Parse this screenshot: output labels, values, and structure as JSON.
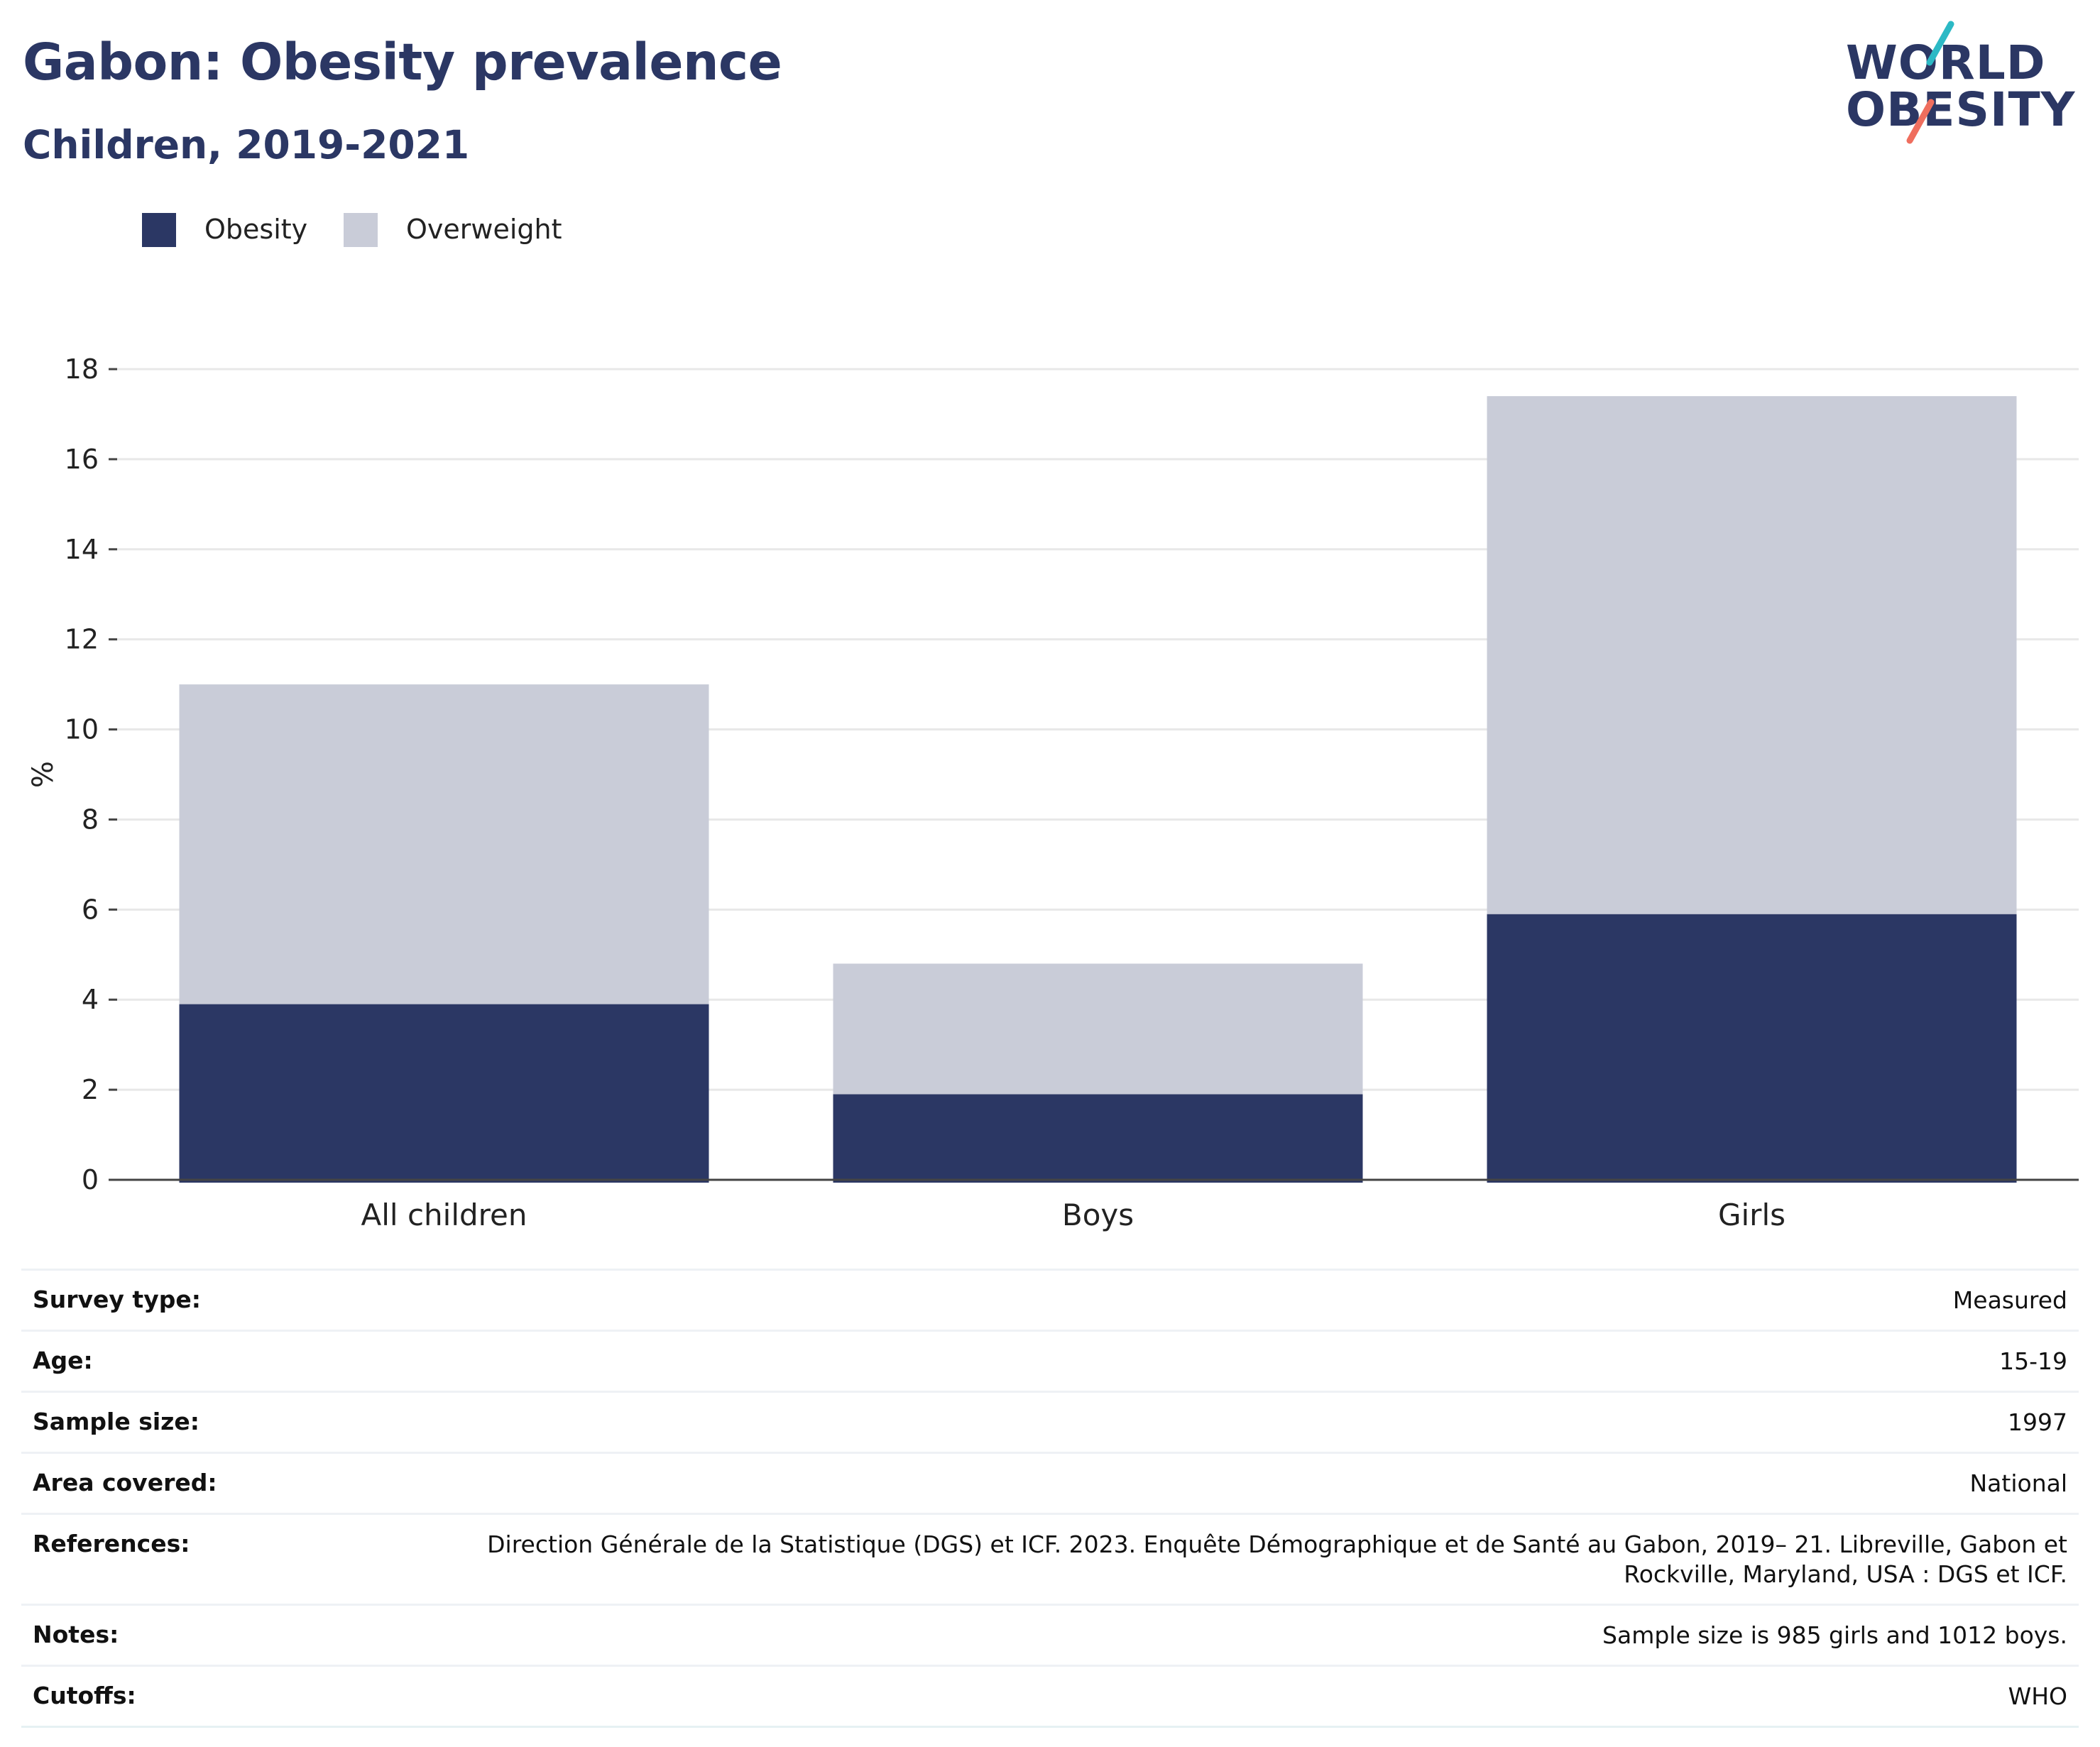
{
  "header": {
    "title": "Gabon: Obesity prevalence",
    "subtitle": "Children, 2019-2021"
  },
  "logo": {
    "line1": "WORLD",
    "line2": "OBESITY",
    "accent_colors": [
      "#2cb9c5",
      "#ef6e5e"
    ]
  },
  "colors": {
    "obesity": "#2b3764",
    "overweight": "#c9ccd8",
    "grid": "#e8e8e8",
    "axis": "#444444"
  },
  "legend": [
    {
      "label": "Obesity",
      "color": "#2b3764"
    },
    {
      "label": "Overweight",
      "color": "#c9ccd8"
    }
  ],
  "chart_data": {
    "type": "bar",
    "stacked": true,
    "categories": [
      "All children",
      "Boys",
      "Girls"
    ],
    "series": [
      {
        "name": "Obesity",
        "values": [
          3.9,
          1.9,
          5.9
        ]
      },
      {
        "name": "Overweight",
        "values": [
          7.1,
          2.9,
          11.5
        ]
      }
    ],
    "ylabel": "%",
    "ylim": [
      0,
      18
    ],
    "yticks": [
      0,
      2,
      4,
      6,
      8,
      10,
      12,
      14,
      16,
      18
    ],
    "grid": true,
    "legend_position": "top-left"
  },
  "details": [
    {
      "label": "Survey type:",
      "value": "Measured"
    },
    {
      "label": "Age:",
      "value": "15-19"
    },
    {
      "label": "Sample size:",
      "value": "1997"
    },
    {
      "label": "Area covered:",
      "value": "National"
    },
    {
      "label": "References:",
      "value": "Direction Générale de la Statistique (DGS) et ICF. 2023. Enquête Démographique et de Santé au Gabon, 2019– 21. Libreville, Gabon et Rockville, Maryland, USA : DGS et ICF."
    },
    {
      "label": "Notes:",
      "value": "Sample size is 985 girls and 1012 boys."
    },
    {
      "label": "Cutoffs:",
      "value": "WHO"
    }
  ]
}
